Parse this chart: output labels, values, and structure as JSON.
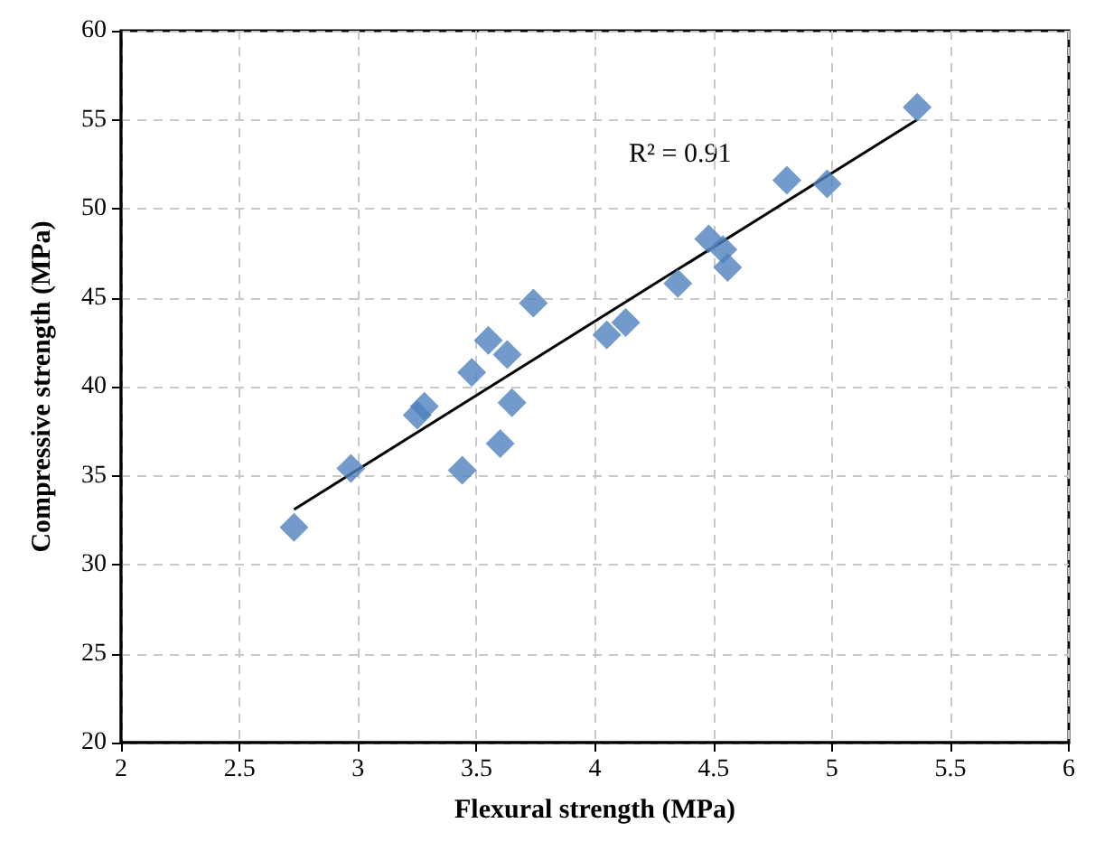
{
  "chart_data": {
    "type": "scatter",
    "xlabel": "Flexural strength (MPa)",
    "ylabel": "Compressive strength (MPa)",
    "annotations": [
      "R² = 0.91"
    ],
    "xlim": [
      2,
      6
    ],
    "xticks": [
      2,
      2.5,
      3,
      3.5,
      4,
      4.5,
      5,
      5.5,
      6
    ],
    "ylim": [
      20,
      60
    ],
    "yticks": [
      20,
      25,
      30,
      35,
      40,
      45,
      50,
      55,
      60
    ],
    "grid": true,
    "marker": "diamond",
    "series": [
      {
        "color": "#4f81bd",
        "x": [
          2.73,
          2.97,
          3.25,
          3.28,
          3.44,
          3.48,
          3.55,
          3.6,
          3.63,
          3.65,
          3.74,
          4.05,
          4.13,
          4.35,
          4.48,
          4.54,
          4.56,
          4.81,
          4.98,
          5.36
        ],
        "values": [
          32.1,
          35.4,
          38.4,
          38.9,
          35.3,
          40.8,
          42.6,
          36.8,
          41.8,
          39.1,
          44.7,
          42.9,
          43.6,
          45.8,
          48.3,
          47.7,
          46.7,
          51.6,
          51.4,
          55.7
        ]
      },
      {
        "type": "line",
        "color": "#000000",
        "x": [
          2.73,
          5.36
        ],
        "values": [
          33.1,
          55.0
        ],
        "marker": "none"
      }
    ]
  }
}
